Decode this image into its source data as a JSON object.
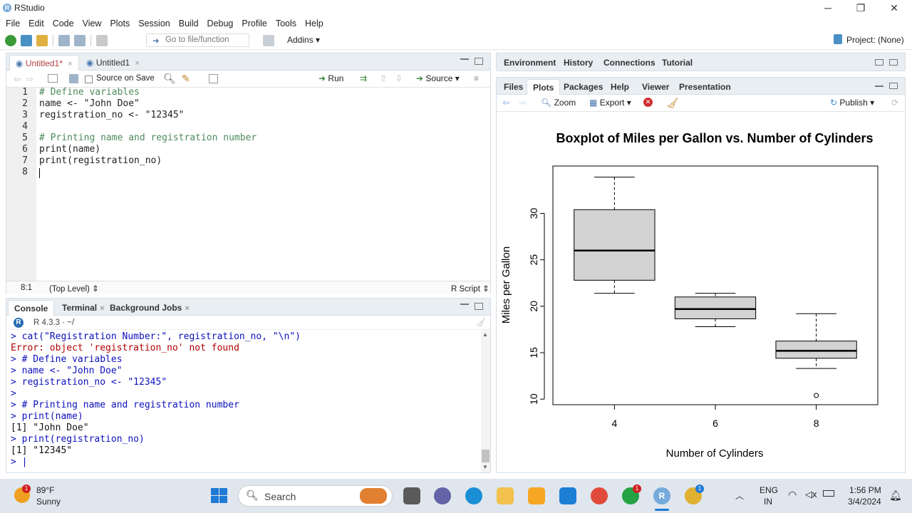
{
  "window": {
    "title": "RStudio",
    "minimize": "─",
    "maximize": "❐",
    "close": "✕"
  },
  "menu": [
    "File",
    "Edit",
    "Code",
    "View",
    "Plots",
    "Session",
    "Build",
    "Debug",
    "Profile",
    "Tools",
    "Help"
  ],
  "toolbar": {
    "goto_placeholder": "Go to file/function",
    "addins": "Addins",
    "project": "Project: (None)"
  },
  "source_pane": {
    "tabs": [
      {
        "label": "Untitled1*"
      },
      {
        "label": "Untitled1"
      }
    ],
    "source_on_save": "Source on Save",
    "run_label": "Run",
    "source_label": "Source",
    "lines": [
      {
        "n": "1",
        "text": "# Define variables"
      },
      {
        "n": "2",
        "text": "name <- \"John Doe\""
      },
      {
        "n": "3",
        "text": "registration_no <- \"12345\""
      },
      {
        "n": "4",
        "text": ""
      },
      {
        "n": "5",
        "text": "# Printing name and registration number"
      },
      {
        "n": "6",
        "text": "print(name)"
      },
      {
        "n": "7",
        "text": "print(registration_no)"
      },
      {
        "n": "8",
        "text": ""
      }
    ],
    "status_position": "8:1",
    "status_scope": "(Top Level)",
    "status_type": "R Script"
  },
  "console_pane": {
    "tabs": [
      {
        "label": "Console"
      },
      {
        "label": "Terminal"
      },
      {
        "label": "Background Jobs"
      }
    ],
    "r_version": "R 4.3.3 · ~/",
    "lines": [
      {
        "kind": "in",
        "text": "> cat(\"Registration Number:\", registration_no, \"\\n\")"
      },
      {
        "kind": "err",
        "text": "Error: object 'registration_no' not found"
      },
      {
        "kind": "in",
        "text": "> # Define variables"
      },
      {
        "kind": "in",
        "text": "> name <- \"John Doe\""
      },
      {
        "kind": "in",
        "text": "> registration_no <- \"12345\""
      },
      {
        "kind": "in",
        "text": ">"
      },
      {
        "kind": "in",
        "text": "> # Printing name and registration number"
      },
      {
        "kind": "in",
        "text": "> print(name)"
      },
      {
        "kind": "out",
        "text": "[1] \"John Doe\""
      },
      {
        "kind": "in",
        "text": "> print(registration_no)"
      },
      {
        "kind": "out",
        "text": "[1] \"12345\""
      },
      {
        "kind": "in",
        "text": "> |"
      }
    ]
  },
  "env_pane": {
    "tabs": [
      "Environment",
      "History",
      "Connections",
      "Tutorial"
    ]
  },
  "files_pane": {
    "tabs": [
      "Files",
      "Plots",
      "Packages",
      "Help",
      "Viewer",
      "Presentation"
    ],
    "zoom_label": "Zoom",
    "export_label": "Export",
    "publish_label": "Publish"
  },
  "chart_data": {
    "type": "boxplot",
    "title": "Boxplot of Miles per Gallon vs. Number of Cylinders",
    "xlabel": "Number of Cylinders",
    "ylabel": "Miles per Gallon",
    "categories": [
      "4",
      "6",
      "8"
    ],
    "yticks": [
      "10",
      "15",
      "20",
      "25",
      "30"
    ],
    "ylim": [
      9.4,
      35.1
    ],
    "boxes": [
      {
        "category": "4",
        "min": 21.4,
        "q1": 22.8,
        "median": 26.0,
        "q3": 30.4,
        "max": 33.9,
        "outliers": []
      },
      {
        "category": "6",
        "min": 17.8,
        "q1": 18.65,
        "median": 19.7,
        "q3": 21.0,
        "max": 21.4,
        "outliers": []
      },
      {
        "category": "8",
        "min": 13.3,
        "q1": 14.4,
        "median": 15.2,
        "q3": 16.25,
        "max": 19.2,
        "outliers": [
          10.4
        ]
      }
    ]
  },
  "taskbar": {
    "weather_temp": "89°F",
    "weather_cond": "Sunny",
    "weather_badge": "1",
    "search": "Search",
    "lang_top": "ENG",
    "lang_bottom": "IN",
    "time": "1:56 PM",
    "date": "3/4/2024",
    "whatsapp_badge": "1",
    "chrome_badge": "1"
  }
}
